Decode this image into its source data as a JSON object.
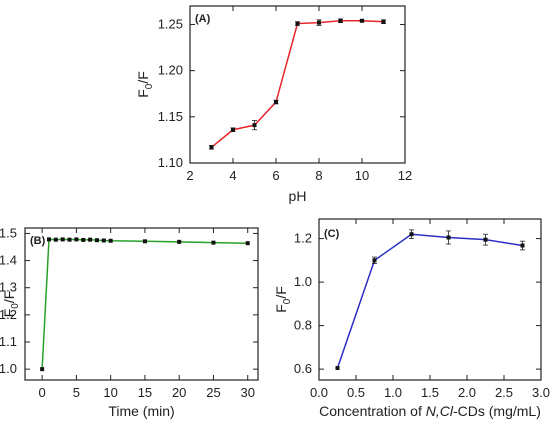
{
  "chart_data": [
    {
      "panel": "(A)",
      "type": "line",
      "xlabel": "pH",
      "ylabel_main": "F",
      "ylabel_sub": "0",
      "ylabel_rest": "/F",
      "xlim": [
        2,
        12
      ],
      "ylim": [
        1.1,
        1.27
      ],
      "xticks": [
        2,
        4,
        6,
        8,
        10,
        12
      ],
      "yticks": [
        1.1,
        1.15,
        1.2,
        1.25
      ],
      "ytick_decimals": 2,
      "line_color": "#e8232a",
      "grid": false,
      "x": [
        3,
        4,
        5,
        6,
        7,
        8,
        9,
        10,
        11
      ],
      "y": [
        1.117,
        1.136,
        1.141,
        1.166,
        1.251,
        1.252,
        1.254,
        1.254,
        1.253
      ],
      "err": [
        0.002,
        0.002,
        0.005,
        0.002,
        0.002,
        0.003,
        0.002,
        0.001,
        0.002
      ]
    },
    {
      "panel": "(B)",
      "type": "line",
      "xlabel": "Time (min)",
      "ylabel_main": "F",
      "ylabel_sub": "0",
      "ylabel_rest": "/F",
      "xlim": [
        -2.5,
        31.5
      ],
      "ylim": [
        0.96,
        1.52
      ],
      "xticks": [
        0,
        5,
        10,
        15,
        20,
        25,
        30
      ],
      "yticks": [
        1.0,
        1.1,
        1.2,
        1.3,
        1.4,
        1.5
      ],
      "ytick_decimals": 1,
      "line_color": "#2aa02a",
      "grid": false,
      "x": [
        0,
        1,
        2,
        3,
        4,
        5,
        6,
        7,
        8,
        9,
        10,
        15,
        20,
        25,
        30
      ],
      "y": [
        1.0,
        1.478,
        1.477,
        1.478,
        1.477,
        1.478,
        1.476,
        1.477,
        1.475,
        1.474,
        1.473,
        1.471,
        1.469,
        1.466,
        1.464
      ],
      "err": [
        0,
        0,
        0,
        0,
        0,
        0,
        0,
        0,
        0,
        0,
        0,
        0,
        0,
        0,
        0
      ]
    },
    {
      "panel": "(C)",
      "type": "line",
      "xlabel_parts": [
        "Concentration of ",
        "N,Cl",
        "-CDs (mg/mL)"
      ],
      "ylabel_main": "F",
      "ylabel_sub": "0",
      "ylabel_rest": "/F",
      "xlim": [
        0,
        3.0
      ],
      "ylim": [
        0.55,
        1.29
      ],
      "xticks": [
        0.0,
        0.5,
        1.0,
        1.5,
        2.0,
        2.5,
        3.0
      ],
      "yticks": [
        0.6,
        0.8,
        1.0,
        1.2
      ],
      "ytick_decimals": 1,
      "xtick_decimals": 1,
      "line_color": "#2b2fc4",
      "grid": false,
      "x": [
        0.25,
        0.75,
        1.25,
        1.75,
        2.25,
        2.75
      ],
      "y": [
        0.605,
        1.1,
        1.22,
        1.205,
        1.195,
        1.168
      ],
      "err": [
        0,
        0.015,
        0.02,
        0.03,
        0.025,
        0.02
      ]
    }
  ]
}
